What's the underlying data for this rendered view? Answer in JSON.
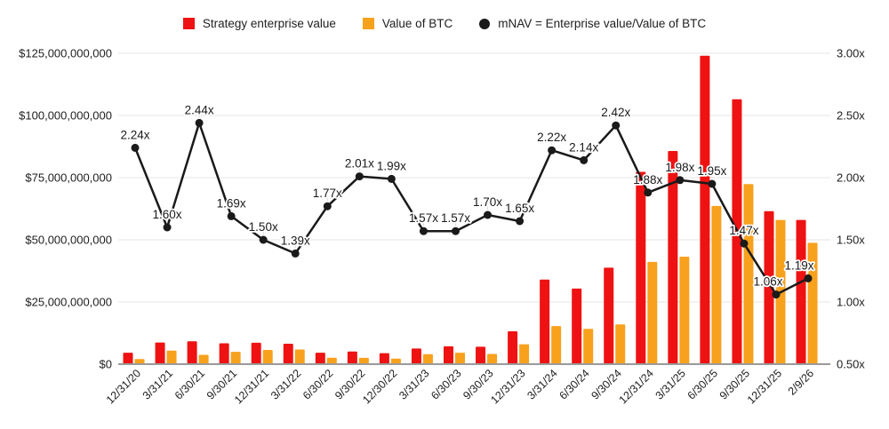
{
  "legend": {
    "items": [
      {
        "label": "Strategy enterprise value",
        "marker": "square",
        "color": "#ee1212"
      },
      {
        "label": "Value of BTC",
        "marker": "square",
        "color": "#f7a11d"
      },
      {
        "label": "mNAV = Enterprise value/Value of BTC",
        "marker": "circle",
        "color": "#1a1a1a"
      }
    ]
  },
  "chart_data": {
    "type": "bar",
    "subtype": "combo-bar-line",
    "grid": true,
    "legend_position": "top",
    "categories": [
      "12/31/20",
      "3/31/21",
      "6/30/21",
      "9/30/21",
      "12/31/21",
      "3/31/22",
      "6/30/22",
      "9/30/22",
      "12/30/22",
      "3/31/23",
      "6/30/23",
      "9/30/23",
      "12/31/23",
      "3/31/24",
      "6/30/24",
      "9/30/24",
      "12/31/24",
      "3/31/25",
      "6/30/25",
      "9/30/25",
      "12/31/25",
      "2/9/26"
    ],
    "series": [
      {
        "name": "Strategy enterprise value",
        "type": "bar",
        "axis": "left",
        "unit": "USD billions",
        "color": "#ee1212",
        "values": [
          4.6,
          8.7,
          9.2,
          8.4,
          8.6,
          8.2,
          4.6,
          5.1,
          4.4,
          6.3,
          7.2,
          7.0,
          13.2,
          34.0,
          30.4,
          38.8,
          77.3,
          85.7,
          124.0,
          106.5,
          61.5,
          58.0
        ]
      },
      {
        "name": "Value of BTC",
        "type": "bar",
        "axis": "left",
        "unit": "USD billions",
        "color": "#f7a11d",
        "values": [
          2.05,
          5.45,
          3.77,
          4.97,
          5.73,
          5.9,
          2.6,
          2.54,
          2.21,
          4.01,
          4.59,
          4.12,
          8.0,
          15.3,
          14.2,
          16.0,
          41.1,
          43.2,
          63.6,
          72.4,
          58.0,
          48.8
        ]
      },
      {
        "name": "mNAV = Enterprise value/Value of BTC",
        "type": "line",
        "axis": "right",
        "unit": "x",
        "color": "#1a1a1a",
        "values": [
          2.24,
          1.6,
          2.44,
          1.69,
          1.5,
          1.39,
          1.77,
          2.01,
          1.99,
          1.57,
          1.57,
          1.7,
          1.65,
          2.22,
          2.14,
          2.42,
          1.88,
          1.98,
          1.95,
          1.47,
          1.06,
          1.19
        ],
        "point_labels": [
          "2.24x",
          "1.60x",
          "2.44x",
          "1.69x",
          "1.50x",
          "1.39x",
          "1.77x",
          "2.01x",
          "1.99x",
          "1.57x",
          "1.57x",
          "1.70x",
          "1.65x",
          "2.22x",
          "2.14x",
          "2.42x",
          "1.88x",
          "1.98x",
          "1.95x",
          "1.47x",
          "1.06x",
          "1.19x"
        ]
      }
    ],
    "left_axis": {
      "min": 0,
      "max": 125000000000,
      "ticks": [
        {
          "label": "$0",
          "billions": 0
        },
        {
          "label": "$25,000,000,000",
          "billions": 25
        },
        {
          "label": "$50,000,000,000",
          "billions": 50
        },
        {
          "label": "$75,000,000,000",
          "billions": 75
        },
        {
          "label": "$100,000,000,000",
          "billions": 100
        },
        {
          "label": "$125,000,000,000",
          "billions": 125
        }
      ]
    },
    "right_axis": {
      "min": 0.5,
      "max": 3.0,
      "ticks": [
        {
          "label": "0.50x",
          "value": 0.5
        },
        {
          "label": "1.00x",
          "value": 1.0
        },
        {
          "label": "1.50x",
          "value": 1.5
        },
        {
          "label": "2.00x",
          "value": 2.0
        },
        {
          "label": "2.50x",
          "value": 2.5
        },
        {
          "label": "3.00x",
          "value": 3.0
        }
      ]
    },
    "colors": {
      "grid": "#e4e4e4",
      "baseline": "#9a9a9a",
      "tick_text": "#212121",
      "data_label_text": "#1a1a1a",
      "leader_line": "#d7d7d7"
    }
  }
}
